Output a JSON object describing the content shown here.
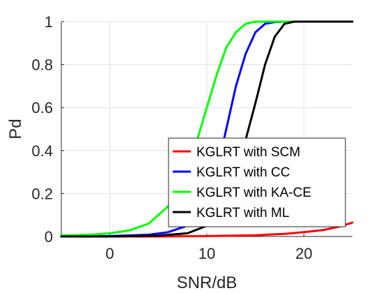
{
  "chart_data": {
    "type": "line",
    "title": "",
    "xlabel": "SNR/dB",
    "ylabel": "Pd",
    "xlim": [
      -5,
      25
    ],
    "ylim": [
      0,
      1
    ],
    "xticks": [
      0,
      10,
      20
    ],
    "yticks": [
      0,
      0.2,
      0.4,
      0.6,
      0.8,
      1
    ],
    "xtick_labels": [
      "0",
      "10",
      "20"
    ],
    "ytick_labels": [
      "0",
      "0.2",
      "0.4",
      "0.6",
      "0.8",
      "1"
    ],
    "grid": true,
    "legend_position": "bottom-right",
    "series": [
      {
        "name": "KGLRT with SCM",
        "color": "#ff0000",
        "x": [
          -5,
          5,
          10,
          15,
          18,
          20,
          22,
          24,
          25
        ],
        "y": [
          0,
          0,
          0.002,
          0.006,
          0.012,
          0.02,
          0.03,
          0.05,
          0.065
        ]
      },
      {
        "name": "KGLRT with CC",
        "color": "#0000ff",
        "x": [
          -5,
          0,
          4,
          6,
          8,
          9,
          10,
          11,
          12,
          13,
          14,
          15,
          16,
          17,
          18,
          19,
          25
        ],
        "y": [
          0,
          0.002,
          0.008,
          0.02,
          0.05,
          0.1,
          0.17,
          0.3,
          0.5,
          0.7,
          0.85,
          0.95,
          0.99,
          0.998,
          1,
          1,
          1
        ]
      },
      {
        "name": "KGLRT with KA-CE",
        "color": "#00ff00",
        "x": [
          -5,
          -2,
          0,
          2,
          4,
          6,
          7,
          8,
          9,
          10,
          11,
          12,
          13,
          14,
          15,
          16,
          17,
          18,
          19,
          20,
          25
        ],
        "y": [
          0.005,
          0.008,
          0.015,
          0.028,
          0.06,
          0.14,
          0.2,
          0.3,
          0.45,
          0.6,
          0.75,
          0.88,
          0.95,
          0.99,
          1,
          1,
          1,
          1,
          1,
          1,
          1
        ]
      },
      {
        "name": "KGLRT with ML",
        "color": "#000000",
        "x": [
          -5,
          0,
          5,
          8,
          10,
          11,
          12,
          13,
          14,
          15,
          16,
          17,
          18,
          19,
          20,
          25
        ],
        "y": [
          0,
          0,
          0.004,
          0.015,
          0.05,
          0.1,
          0.18,
          0.3,
          0.45,
          0.62,
          0.8,
          0.93,
          0.99,
          1,
          1,
          1
        ]
      }
    ]
  }
}
